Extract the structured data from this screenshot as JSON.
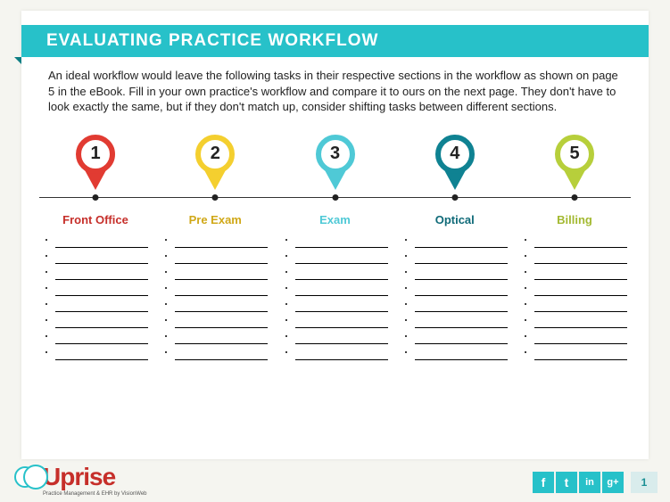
{
  "title": "EVALUATING PRACTICE WORKFLOW",
  "body_text": "An ideal workflow would leave the following tasks in their respective sections in the workflow as shown on page 5 in the eBook. Fill in your own practice's workflow and compare it to ours on the next page. They don't have to look exactly the same, but if they don't match up, consider shifting tasks between different sections.",
  "sections": [
    {
      "num": "1",
      "label": "Front Office",
      "color": "#e13b32",
      "label_color": "#c62f2a"
    },
    {
      "num": "2",
      "label": "Pre Exam",
      "color": "#f4cf2f",
      "label_color": "#d0a818"
    },
    {
      "num": "3",
      "label": "Exam",
      "color": "#4fc9d6",
      "label_color": "#4fc9d6"
    },
    {
      "num": "4",
      "label": "Optical",
      "color": "#0f8292",
      "label_color": "#0f6a78"
    },
    {
      "num": "5",
      "label": "Billing",
      "color": "#b7cf3b",
      "label_color": "#a3b930"
    }
  ],
  "blank_lines_per_section": 8,
  "logo": {
    "name": "Uprise",
    "tagline": "Practice Management & EHR by VisionWeb"
  },
  "socials": [
    {
      "name": "facebook",
      "glyph": "f"
    },
    {
      "name": "twitter",
      "glyph": "t"
    },
    {
      "name": "linkedin",
      "glyph": "in"
    },
    {
      "name": "googleplus",
      "glyph": "g+"
    }
  ],
  "page_number": "1",
  "colors": {
    "header_bg": "#27c1c9",
    "slide_bg": "#ffffff",
    "page_bg": "#f5f5f0"
  }
}
